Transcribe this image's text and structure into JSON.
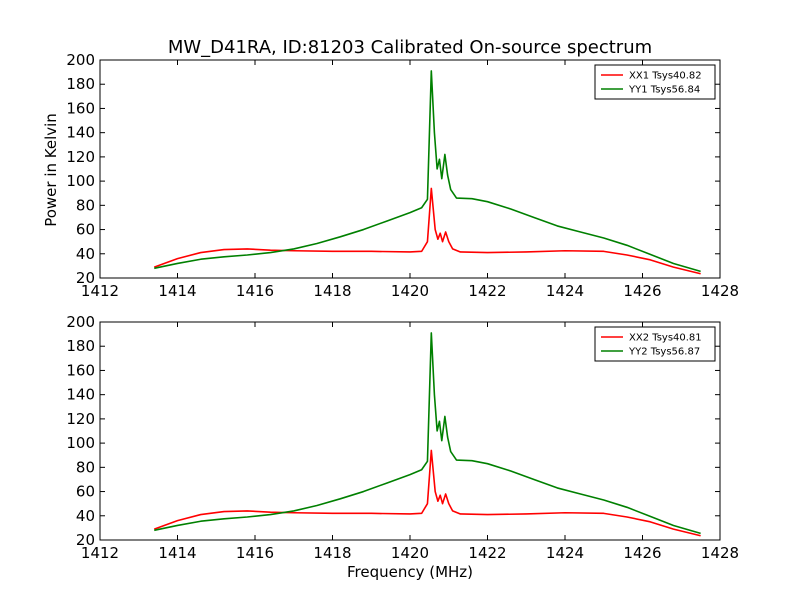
{
  "chart_data": [
    {
      "type": "line",
      "title": "MW_D41RA, ID:81203 Calibrated On-source spectrum",
      "xlabel": "",
      "ylabel": "Power in Kelvin",
      "xlim": [
        1412,
        1428
      ],
      "ylim": [
        20,
        200
      ],
      "xticks": [
        1412,
        1414,
        1416,
        1418,
        1420,
        1422,
        1424,
        1426,
        1428
      ],
      "yticks": [
        20,
        40,
        60,
        80,
        100,
        120,
        140,
        160,
        180,
        200
      ],
      "legend": "top-right",
      "series": [
        {
          "name": "XX1 Tsys40.82",
          "color": "#ff0000",
          "points": [
            [
              1413.4,
              29
            ],
            [
              1414.0,
              36
            ],
            [
              1414.6,
              41
            ],
            [
              1415.2,
              43.5
            ],
            [
              1415.8,
              44
            ],
            [
              1416.4,
              43
            ],
            [
              1417.0,
              42.5
            ],
            [
              1418.0,
              42
            ],
            [
              1419.0,
              42
            ],
            [
              1420.0,
              41.5
            ],
            [
              1420.3,
              42
            ],
            [
              1420.45,
              50
            ],
            [
              1420.55,
              94
            ],
            [
              1420.65,
              60
            ],
            [
              1420.72,
              52
            ],
            [
              1420.78,
              57
            ],
            [
              1420.84,
              50
            ],
            [
              1420.92,
              58
            ],
            [
              1421.0,
              50
            ],
            [
              1421.1,
              44
            ],
            [
              1421.3,
              41.5
            ],
            [
              1422.0,
              41
            ],
            [
              1423.0,
              41.5
            ],
            [
              1424.0,
              42.5
            ],
            [
              1425.0,
              42
            ],
            [
              1425.6,
              39
            ],
            [
              1426.2,
              35
            ],
            [
              1426.8,
              29
            ],
            [
              1427.5,
              23.5
            ]
          ]
        },
        {
          "name": "YY1 Tsys56.84",
          "color": "#008000",
          "points": [
            [
              1413.4,
              28
            ],
            [
              1414.0,
              32
            ],
            [
              1414.6,
              35.5
            ],
            [
              1415.2,
              37.5
            ],
            [
              1415.8,
              39
            ],
            [
              1416.4,
              41
            ],
            [
              1417.0,
              44
            ],
            [
              1417.6,
              48.5
            ],
            [
              1418.2,
              54
            ],
            [
              1418.8,
              60
            ],
            [
              1419.4,
              67
            ],
            [
              1420.0,
              74
            ],
            [
              1420.3,
              78
            ],
            [
              1420.45,
              85
            ],
            [
              1420.55,
              191
            ],
            [
              1420.63,
              140
            ],
            [
              1420.7,
              110
            ],
            [
              1420.76,
              118
            ],
            [
              1420.82,
              102
            ],
            [
              1420.9,
              122
            ],
            [
              1420.97,
              105
            ],
            [
              1421.05,
              93
            ],
            [
              1421.2,
              86
            ],
            [
              1421.6,
              85.5
            ],
            [
              1422.0,
              83
            ],
            [
              1422.6,
              77
            ],
            [
              1423.2,
              70
            ],
            [
              1423.8,
              63
            ],
            [
              1424.4,
              58
            ],
            [
              1425.0,
              53
            ],
            [
              1425.6,
              47
            ],
            [
              1426.2,
              39.5
            ],
            [
              1426.8,
              32
            ],
            [
              1427.5,
              25.5
            ]
          ]
        }
      ]
    },
    {
      "type": "line",
      "title": "",
      "xlabel": "Frequency (MHz)",
      "ylabel": "",
      "xlim": [
        1412,
        1428
      ],
      "ylim": [
        20,
        200
      ],
      "xticks": [
        1412,
        1414,
        1416,
        1418,
        1420,
        1422,
        1424,
        1426,
        1428
      ],
      "yticks": [
        20,
        40,
        60,
        80,
        100,
        120,
        140,
        160,
        180,
        200
      ],
      "legend": "top-right",
      "series": [
        {
          "name": "XX2 Tsys40.81",
          "color": "#ff0000",
          "points": [
            [
              1413.4,
              29
            ],
            [
              1414.0,
              36
            ],
            [
              1414.6,
              41
            ],
            [
              1415.2,
              43.5
            ],
            [
              1415.8,
              44
            ],
            [
              1416.4,
              43
            ],
            [
              1417.0,
              42.5
            ],
            [
              1418.0,
              42
            ],
            [
              1419.0,
              42
            ],
            [
              1420.0,
              41.5
            ],
            [
              1420.3,
              42
            ],
            [
              1420.45,
              50
            ],
            [
              1420.55,
              94
            ],
            [
              1420.65,
              60
            ],
            [
              1420.72,
              52
            ],
            [
              1420.78,
              57
            ],
            [
              1420.84,
              50
            ],
            [
              1420.92,
              58
            ],
            [
              1421.0,
              50
            ],
            [
              1421.1,
              44
            ],
            [
              1421.3,
              41.5
            ],
            [
              1422.0,
              41
            ],
            [
              1423.0,
              41.5
            ],
            [
              1424.0,
              42.5
            ],
            [
              1425.0,
              42
            ],
            [
              1425.6,
              39
            ],
            [
              1426.2,
              35
            ],
            [
              1426.8,
              29
            ],
            [
              1427.5,
              23.5
            ]
          ]
        },
        {
          "name": "YY2 Tsys56.87",
          "color": "#008000",
          "points": [
            [
              1413.4,
              28
            ],
            [
              1414.0,
              32
            ],
            [
              1414.6,
              35.5
            ],
            [
              1415.2,
              37.5
            ],
            [
              1415.8,
              39
            ],
            [
              1416.4,
              41
            ],
            [
              1417.0,
              44
            ],
            [
              1417.6,
              48.5
            ],
            [
              1418.2,
              54
            ],
            [
              1418.8,
              60
            ],
            [
              1419.4,
              67
            ],
            [
              1420.0,
              74
            ],
            [
              1420.3,
              78
            ],
            [
              1420.45,
              85
            ],
            [
              1420.55,
              191
            ],
            [
              1420.63,
              140
            ],
            [
              1420.7,
              110
            ],
            [
              1420.76,
              118
            ],
            [
              1420.82,
              102
            ],
            [
              1420.9,
              122
            ],
            [
              1420.97,
              105
            ],
            [
              1421.05,
              93
            ],
            [
              1421.2,
              86
            ],
            [
              1421.6,
              85.5
            ],
            [
              1422.0,
              83
            ],
            [
              1422.6,
              77
            ],
            [
              1423.2,
              70
            ],
            [
              1423.8,
              63
            ],
            [
              1424.4,
              58
            ],
            [
              1425.0,
              53
            ],
            [
              1425.6,
              47
            ],
            [
              1426.2,
              39.5
            ],
            [
              1426.8,
              32
            ],
            [
              1427.5,
              25.5
            ]
          ]
        }
      ]
    }
  ]
}
